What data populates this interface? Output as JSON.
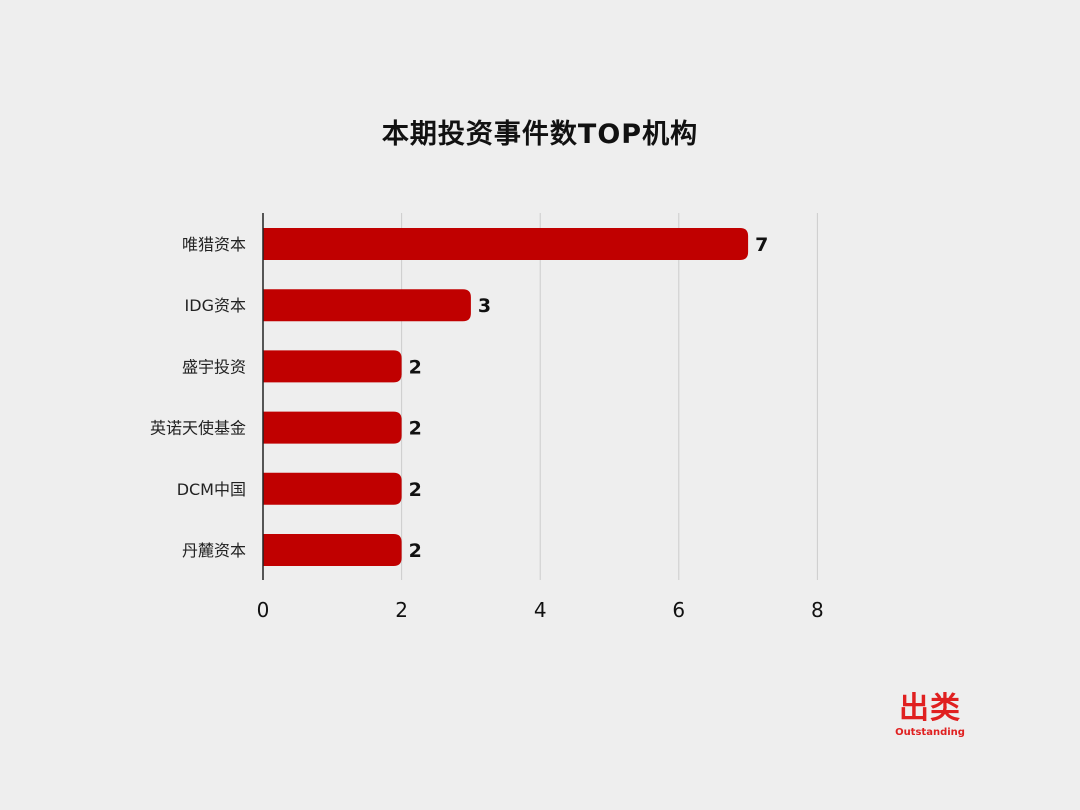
{
  "chart_data": {
    "type": "bar",
    "orientation": "horizontal",
    "title": "本期投资事件数TOP机构",
    "categories": [
      "唯猎资本",
      "IDG资本",
      "盛宇投资",
      "英诺天使基金",
      "DCM中国",
      "丹麓资本"
    ],
    "values": [
      7,
      3,
      2,
      2,
      2,
      2
    ],
    "xlim": [
      0,
      8
    ],
    "xticks": [
      0,
      2,
      4,
      6,
      8
    ],
    "xtick_labels": [
      "0",
      "2",
      "4",
      "6",
      "8"
    ],
    "data_labels": [
      "7",
      "3",
      "2",
      "2",
      "2",
      "2"
    ],
    "grid": true,
    "legend": "none",
    "bar_color": "#c00000"
  },
  "brand": {
    "logo": "出类",
    "tagline": "Outstanding",
    "color": "#e02020"
  },
  "colors": {
    "background": "#eeeeee",
    "grid": "#cccccc",
    "axis": "#222222",
    "text": "#111111"
  }
}
